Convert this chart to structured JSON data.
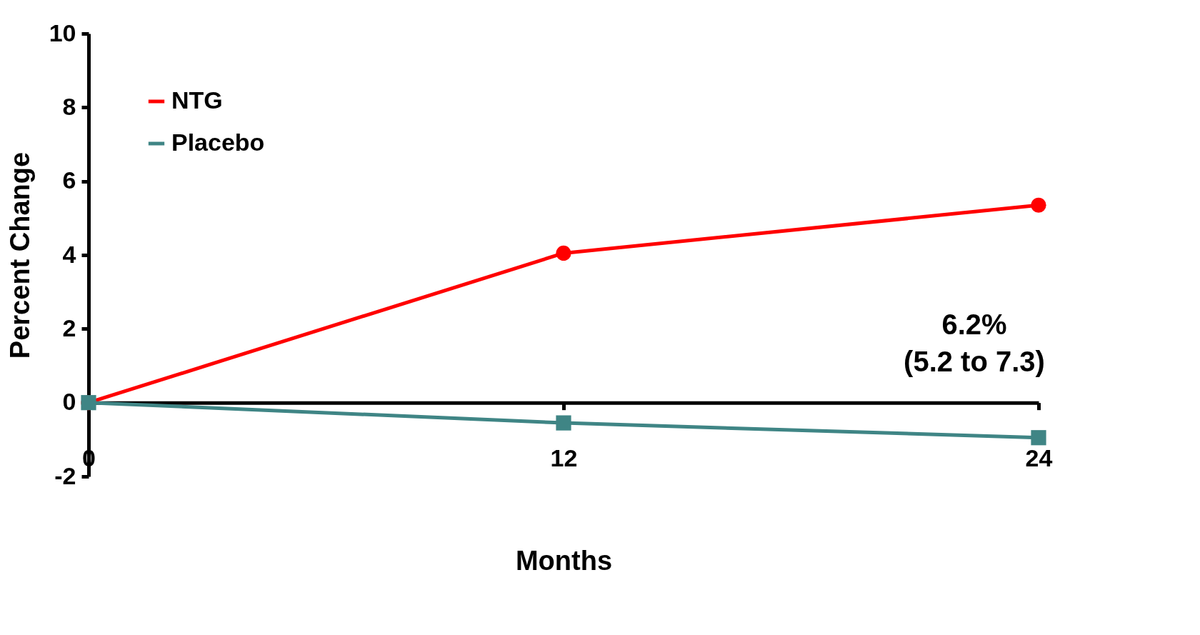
{
  "chart_data": {
    "type": "line",
    "xlabel": "Months",
    "ylabel": "Percent Change",
    "x": [
      0,
      12,
      24
    ],
    "series": [
      {
        "name": "NTG",
        "color": "#ff0000",
        "values": [
          0,
          4.05,
          5.35
        ],
        "marker": "circle"
      },
      {
        "name": "Placebo",
        "color": "#3f8585",
        "values": [
          0,
          -0.55,
          -0.95
        ],
        "marker": "square"
      }
    ],
    "xlim": [
      0,
      24
    ],
    "xticks": [
      0,
      12,
      24
    ],
    "ylim": [
      -2,
      10
    ],
    "yticks": [
      -2,
      0,
      2,
      4,
      6,
      8,
      10
    ],
    "annotations": [
      "6.2%\n(5.2 to 7.3)"
    ],
    "legend": "top left",
    "grid": false,
    "line_style": "solid"
  }
}
